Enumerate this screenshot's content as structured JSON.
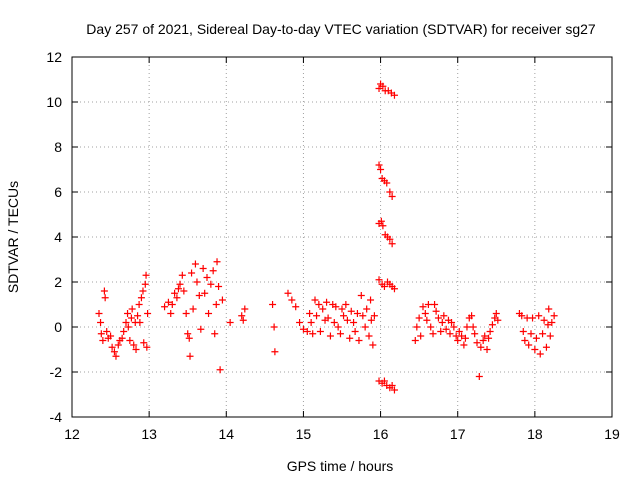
{
  "chart_data": {
    "type": "scatter",
    "title": "Day 257 of 2021, Sidereal Day-to-day VTEC variation (SDTVAR) for receiver sg27",
    "xlabel": "GPS time / hours",
    "ylabel": "SDTVAR / TECUs",
    "xlim": [
      12,
      19
    ],
    "ylim": [
      -4,
      12
    ],
    "xticks": [
      12,
      13,
      14,
      15,
      16,
      17,
      18,
      19
    ],
    "yticks": [
      -4,
      -2,
      0,
      2,
      4,
      6,
      8,
      10,
      12
    ],
    "xtick_labels": [
      "12",
      "13",
      "14",
      "15",
      "16",
      "17",
      "18",
      "19"
    ],
    "ytick_labels": [
      "-4",
      "-2",
      "0",
      "2",
      "4",
      "6",
      "8",
      "10",
      "12"
    ],
    "grid": true,
    "marker": "+",
    "series": [
      {
        "name": "sg27",
        "color": "#ff0000",
        "points": [
          [
            12.35,
            0.6
          ],
          [
            12.37,
            0.2
          ],
          [
            12.38,
            -0.3
          ],
          [
            12.4,
            -0.6
          ],
          [
            12.42,
            1.6
          ],
          [
            12.43,
            1.3
          ],
          [
            12.45,
            -0.2
          ],
          [
            12.47,
            -0.5
          ],
          [
            12.5,
            -0.4
          ],
          [
            12.52,
            -0.9
          ],
          [
            12.55,
            -1.1
          ],
          [
            12.57,
            -1.3
          ],
          [
            12.6,
            -0.8
          ],
          [
            12.62,
            -0.6
          ],
          [
            12.65,
            -0.5
          ],
          [
            12.67,
            -0.2
          ],
          [
            12.7,
            0.2
          ],
          [
            12.72,
            0.6
          ],
          [
            12.73,
            0.0
          ],
          [
            12.75,
            -0.6
          ],
          [
            12.77,
            0.4
          ],
          [
            12.78,
            0.8
          ],
          [
            12.8,
            -0.8
          ],
          [
            12.82,
            0.2
          ],
          [
            12.83,
            -1.0
          ],
          [
            12.85,
            0.5
          ],
          [
            12.87,
            1.0
          ],
          [
            12.88,
            0.2
          ],
          [
            12.9,
            1.3
          ],
          [
            12.92,
            1.6
          ],
          [
            12.93,
            -0.7
          ],
          [
            12.95,
            1.9
          ],
          [
            12.96,
            2.3
          ],
          [
            12.97,
            -0.9
          ],
          [
            12.98,
            0.6
          ],
          [
            13.2,
            0.9
          ],
          [
            13.25,
            1.1
          ],
          [
            13.28,
            0.6
          ],
          [
            13.3,
            1.0
          ],
          [
            13.33,
            1.5
          ],
          [
            13.36,
            1.3
          ],
          [
            13.38,
            1.7
          ],
          [
            13.4,
            1.9
          ],
          [
            13.43,
            2.3
          ],
          [
            13.45,
            1.6
          ],
          [
            13.48,
            0.6
          ],
          [
            13.5,
            -0.3
          ],
          [
            13.52,
            -0.5
          ],
          [
            13.53,
            -1.3
          ],
          [
            13.55,
            2.4
          ],
          [
            13.57,
            0.8
          ],
          [
            13.6,
            2.8
          ],
          [
            13.62,
            2.0
          ],
          [
            13.65,
            1.4
          ],
          [
            13.67,
            -0.1
          ],
          [
            13.7,
            2.6
          ],
          [
            13.72,
            1.5
          ],
          [
            13.75,
            2.2
          ],
          [
            13.77,
            0.6
          ],
          [
            13.8,
            1.9
          ],
          [
            13.83,
            2.5
          ],
          [
            13.85,
            -0.3
          ],
          [
            13.87,
            1.0
          ],
          [
            13.88,
            2.9
          ],
          [
            13.9,
            1.8
          ],
          [
            13.92,
            -1.9
          ],
          [
            13.95,
            1.2
          ],
          [
            14.05,
            0.2
          ],
          [
            14.2,
            0.5
          ],
          [
            14.22,
            0.3
          ],
          [
            14.24,
            0.8
          ],
          [
            14.6,
            1.0
          ],
          [
            14.62,
            0.0
          ],
          [
            14.63,
            -1.1
          ],
          [
            14.8,
            1.5
          ],
          [
            14.85,
            1.2
          ],
          [
            14.9,
            0.9
          ],
          [
            14.95,
            0.2
          ],
          [
            15.0,
            -0.1
          ],
          [
            15.05,
            -0.2
          ],
          [
            15.08,
            0.6
          ],
          [
            15.1,
            0.2
          ],
          [
            15.12,
            -0.3
          ],
          [
            15.15,
            1.2
          ],
          [
            15.17,
            0.5
          ],
          [
            15.2,
            1.0
          ],
          [
            15.22,
            -0.2
          ],
          [
            15.25,
            0.8
          ],
          [
            15.28,
            0.3
          ],
          [
            15.3,
            1.1
          ],
          [
            15.32,
            0.4
          ],
          [
            15.35,
            -0.4
          ],
          [
            15.38,
            1.0
          ],
          [
            15.4,
            0.2
          ],
          [
            15.42,
            0.9
          ],
          [
            15.45,
            0.0
          ],
          [
            15.48,
            -0.3
          ],
          [
            15.5,
            0.8
          ],
          [
            15.52,
            0.5
          ],
          [
            15.55,
            1.0
          ],
          [
            15.57,
            0.3
          ],
          [
            15.6,
            -0.5
          ],
          [
            15.62,
            0.7
          ],
          [
            15.65,
            0.2
          ],
          [
            15.67,
            -0.2
          ],
          [
            15.7,
            0.6
          ],
          [
            15.72,
            -0.6
          ],
          [
            15.75,
            1.4
          ],
          [
            15.77,
            0.5
          ],
          [
            15.8,
            0.0
          ],
          [
            15.82,
            0.8
          ],
          [
            15.85,
            -0.4
          ],
          [
            15.87,
            1.2
          ],
          [
            15.88,
            0.3
          ],
          [
            15.9,
            -0.8
          ],
          [
            15.92,
            0.5
          ],
          [
            15.98,
            10.6
          ],
          [
            16.0,
            10.8
          ],
          [
            16.03,
            10.7
          ],
          [
            16.06,
            10.5
          ],
          [
            16.1,
            10.5
          ],
          [
            16.14,
            10.4
          ],
          [
            16.18,
            10.3
          ],
          [
            15.98,
            7.2
          ],
          [
            16.0,
            7.0
          ],
          [
            16.02,
            6.6
          ],
          [
            16.05,
            6.5
          ],
          [
            16.08,
            6.4
          ],
          [
            16.12,
            6.0
          ],
          [
            16.15,
            5.8
          ],
          [
            15.98,
            4.6
          ],
          [
            16.01,
            4.7
          ],
          [
            16.03,
            4.5
          ],
          [
            16.06,
            4.1
          ],
          [
            16.09,
            4.0
          ],
          [
            16.12,
            3.9
          ],
          [
            16.15,
            3.7
          ],
          [
            15.98,
            2.1
          ],
          [
            16.02,
            1.9
          ],
          [
            16.05,
            1.8
          ],
          [
            16.09,
            2.0
          ],
          [
            16.12,
            1.9
          ],
          [
            16.15,
            1.8
          ],
          [
            16.18,
            1.7
          ],
          [
            15.98,
            -2.4
          ],
          [
            16.02,
            -2.5
          ],
          [
            16.05,
            -2.4
          ],
          [
            16.08,
            -2.6
          ],
          [
            16.12,
            -2.7
          ],
          [
            16.15,
            -2.6
          ],
          [
            16.18,
            -2.8
          ],
          [
            16.45,
            -0.6
          ],
          [
            16.47,
            0.0
          ],
          [
            16.5,
            0.4
          ],
          [
            16.52,
            -0.4
          ],
          [
            16.55,
            0.9
          ],
          [
            16.58,
            0.6
          ],
          [
            16.6,
            0.3
          ],
          [
            16.62,
            1.0
          ],
          [
            16.65,
            0.0
          ],
          [
            16.68,
            -0.3
          ],
          [
            16.7,
            1.0
          ],
          [
            16.72,
            0.7
          ],
          [
            16.75,
            0.4
          ],
          [
            16.78,
            -0.2
          ],
          [
            16.8,
            0.2
          ],
          [
            16.82,
            0.5
          ],
          [
            16.85,
            -0.1
          ],
          [
            16.88,
            0.3
          ],
          [
            16.9,
            -0.3
          ],
          [
            16.92,
            0.2
          ],
          [
            16.95,
            0.0
          ],
          [
            16.98,
            -0.4
          ],
          [
            17.0,
            -0.6
          ],
          [
            17.02,
            -0.2
          ],
          [
            17.05,
            -0.4
          ],
          [
            17.08,
            -0.8
          ],
          [
            17.1,
            -0.5
          ],
          [
            17.12,
            0.0
          ],
          [
            17.15,
            0.4
          ],
          [
            17.18,
            0.5
          ],
          [
            17.2,
            0.0
          ],
          [
            17.22,
            -0.3
          ],
          [
            17.25,
            -0.7
          ],
          [
            17.28,
            -2.2
          ],
          [
            17.3,
            -0.9
          ],
          [
            17.33,
            -0.6
          ],
          [
            17.35,
            -0.4
          ],
          [
            17.38,
            -1.0
          ],
          [
            17.4,
            -0.5
          ],
          [
            17.42,
            -0.2
          ],
          [
            17.45,
            0.1
          ],
          [
            17.48,
            0.4
          ],
          [
            17.5,
            0.6
          ],
          [
            17.52,
            0.3
          ],
          [
            17.8,
            0.6
          ],
          [
            17.83,
            0.5
          ],
          [
            17.85,
            -0.2
          ],
          [
            17.87,
            -0.6
          ],
          [
            17.9,
            0.4
          ],
          [
            17.92,
            -0.8
          ],
          [
            17.95,
            -0.3
          ],
          [
            17.97,
            0.4
          ],
          [
            18.0,
            -1.0
          ],
          [
            18.02,
            -0.5
          ],
          [
            18.05,
            0.5
          ],
          [
            18.07,
            -1.2
          ],
          [
            18.1,
            -0.3
          ],
          [
            18.12,
            0.3
          ],
          [
            18.15,
            -0.9
          ],
          [
            18.17,
            0.1
          ],
          [
            18.18,
            0.8
          ],
          [
            18.2,
            -0.4
          ],
          [
            18.22,
            0.2
          ],
          [
            18.25,
            0.5
          ]
        ]
      }
    ]
  }
}
